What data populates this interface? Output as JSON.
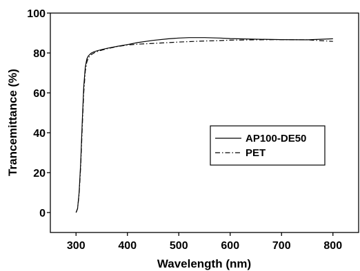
{
  "chart_data": {
    "type": "line",
    "title": "",
    "xlabel": "Wavelength (nm)",
    "ylabel": "Trancemittance (%)",
    "xlim": [
      250,
      850
    ],
    "ylim": [
      -10,
      100
    ],
    "xticks": [
      300,
      400,
      500,
      600,
      700,
      800
    ],
    "yticks": [
      0,
      20,
      40,
      60,
      80,
      100
    ],
    "grid": false,
    "legend_position": "center-right",
    "series": [
      {
        "name": "AP100-DE50",
        "line_style": "solid",
        "color": "#000000",
        "x": [
          300,
          303,
          306,
          309,
          312,
          315,
          318,
          321,
          324,
          327,
          330,
          335,
          340,
          350,
          360,
          380,
          400,
          420,
          450,
          480,
          500,
          520,
          550,
          580,
          600,
          650,
          700,
          750,
          800
        ],
        "y": [
          0,
          2,
          10,
          25,
          45,
          63,
          73,
          77,
          78.5,
          79.3,
          80,
          80.6,
          81,
          81.7,
          82.3,
          83.3,
          84.2,
          85.2,
          86.3,
          87.1,
          87.5,
          87.7,
          87.7,
          87.5,
          87.2,
          86.9,
          86.7,
          86.6,
          87.1
        ]
      },
      {
        "name": "PET",
        "line_style": "dash-dot",
        "color": "#000000",
        "x": [
          300,
          303,
          306,
          309,
          312,
          315,
          318,
          321,
          324,
          327,
          330,
          335,
          340,
          350,
          360,
          380,
          400,
          420,
          450,
          480,
          500,
          520,
          550,
          580,
          600,
          650,
          700,
          750,
          800
        ],
        "y": [
          0,
          2,
          9,
          23,
          42,
          60,
          71,
          75.5,
          77.5,
          78.5,
          79.2,
          80,
          80.6,
          81.4,
          82.1,
          83.2,
          84,
          84.4,
          84.8,
          85.2,
          85.5,
          85.7,
          86,
          86.2,
          86.4,
          86.6,
          86.7,
          86.6,
          85.8
        ]
      }
    ]
  }
}
